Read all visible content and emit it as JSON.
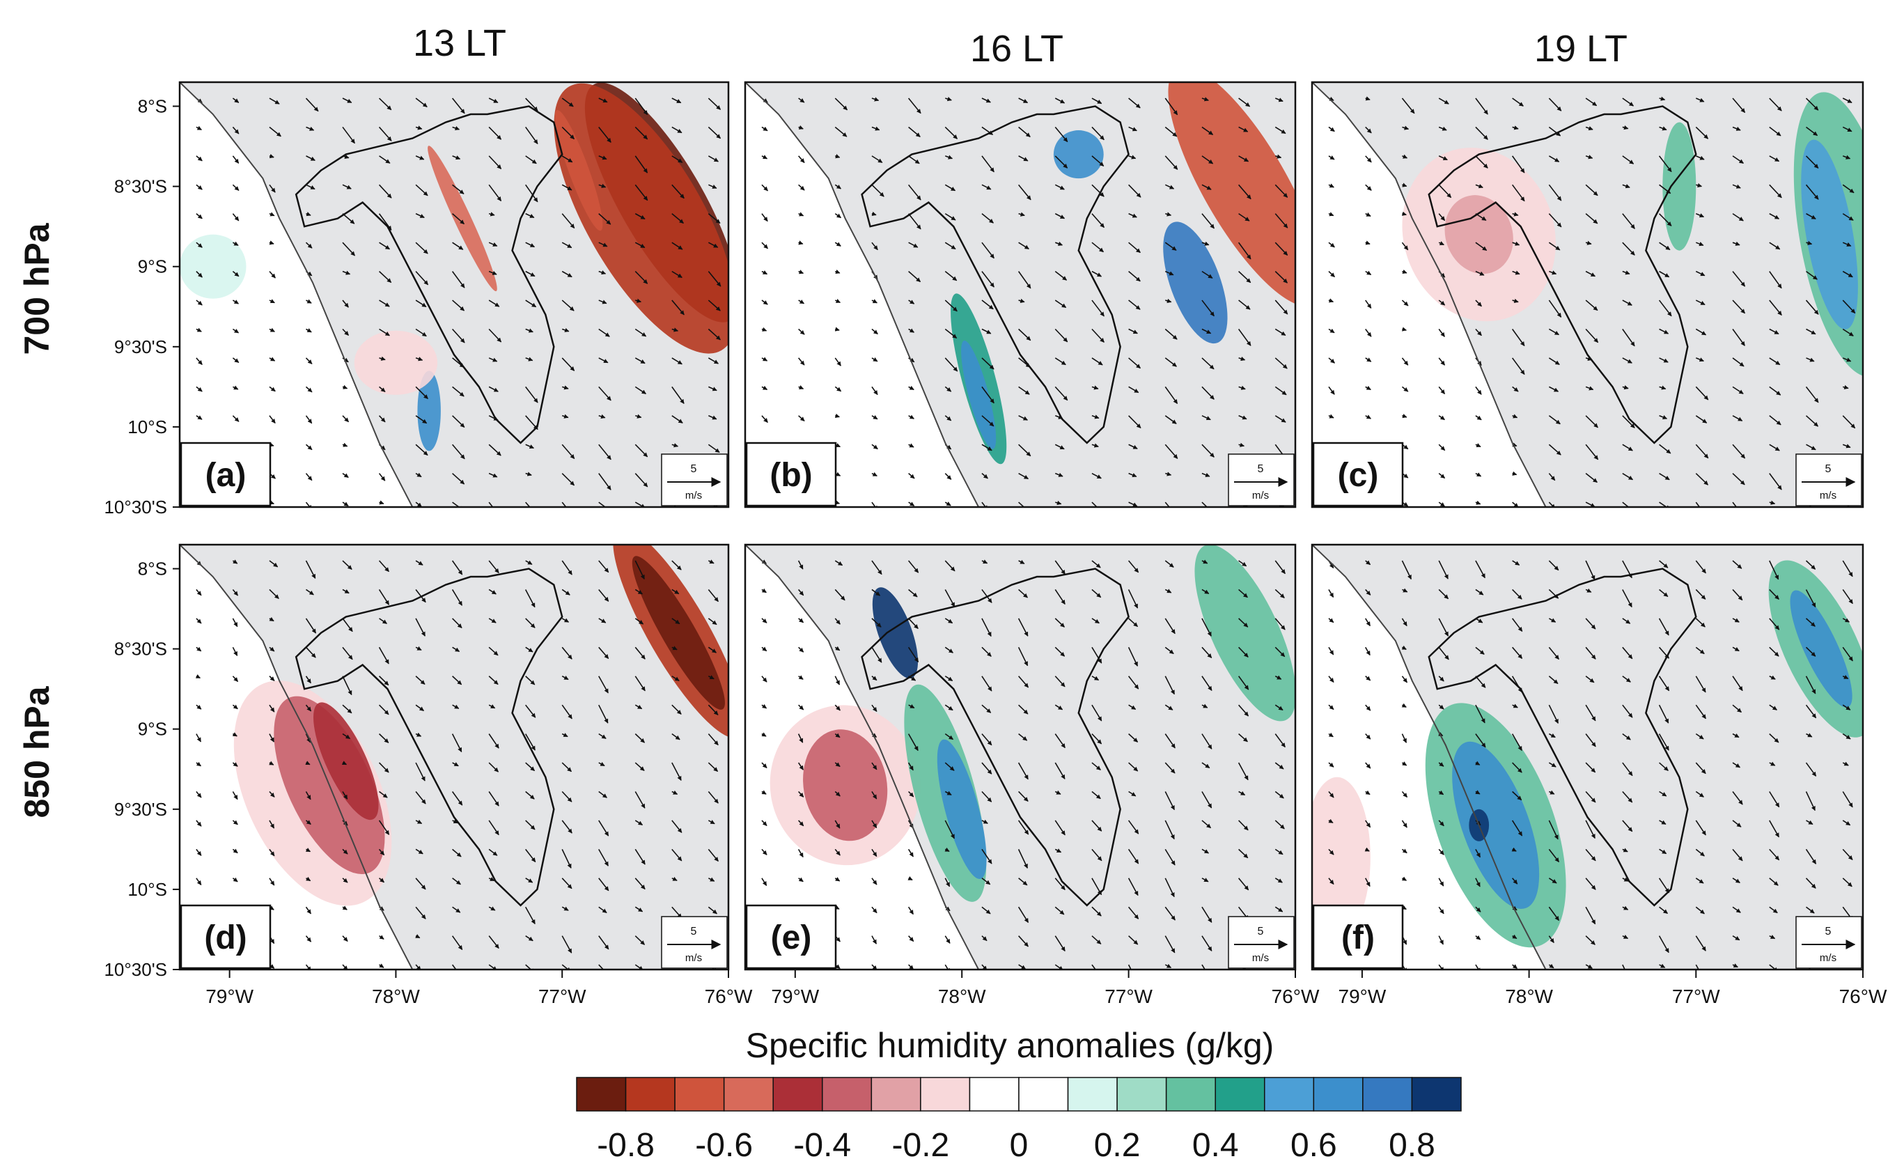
{
  "figure": {
    "column_titles": [
      "13 LT",
      "16 LT",
      "19 LT"
    ],
    "row_titles": [
      "700 hPa",
      "850 hPa"
    ],
    "panels": [
      {
        "label": "(a)",
        "time": "13 LT",
        "level": "700 hPa"
      },
      {
        "label": "(b)",
        "time": "16 LT",
        "level": "700 hPa"
      },
      {
        "label": "(c)",
        "time": "19 LT",
        "level": "700 hPa"
      },
      {
        "label": "(d)",
        "time": "13 LT",
        "level": "850 hPa"
      },
      {
        "label": "(e)",
        "time": "16 LT",
        "level": "850 hPa"
      },
      {
        "label": "(f)",
        "time": "19 LT",
        "level": "850 hPa"
      }
    ],
    "lat_ticks": [
      "8°S",
      "8°30'S",
      "9°S",
      "9°30'S",
      "10°S",
      "10°30'S"
    ],
    "lon_ticks": [
      "79°W",
      "78°W",
      "77°W",
      "76°W"
    ],
    "vector_reference": {
      "value": "5",
      "unit": "m/s"
    },
    "colorbar": {
      "title": "Specific humidity anomalies (g/kg)",
      "tick_labels": [
        "-0.8",
        "-0.6",
        "-0.4",
        "-0.2",
        "0",
        "0.2",
        "0.4",
        "0.6",
        "0.8"
      ],
      "colors": [
        "#6b1d0f",
        "#b5371f",
        "#cf543c",
        "#d86a5a",
        "#ab2f37",
        "#c6606b",
        "#e1a1a6",
        "#f8d8da",
        "#ffffff",
        "#ffffff",
        "#d6f5ee",
        "#9fdcc6",
        "#64c1a0",
        "#22a08a",
        "#4c9fd6",
        "#3c8fcc",
        "#3579c0",
        "#0d3670"
      ]
    },
    "land_color": "#e4e5e7",
    "ocean_color": "#ffffff"
  }
}
